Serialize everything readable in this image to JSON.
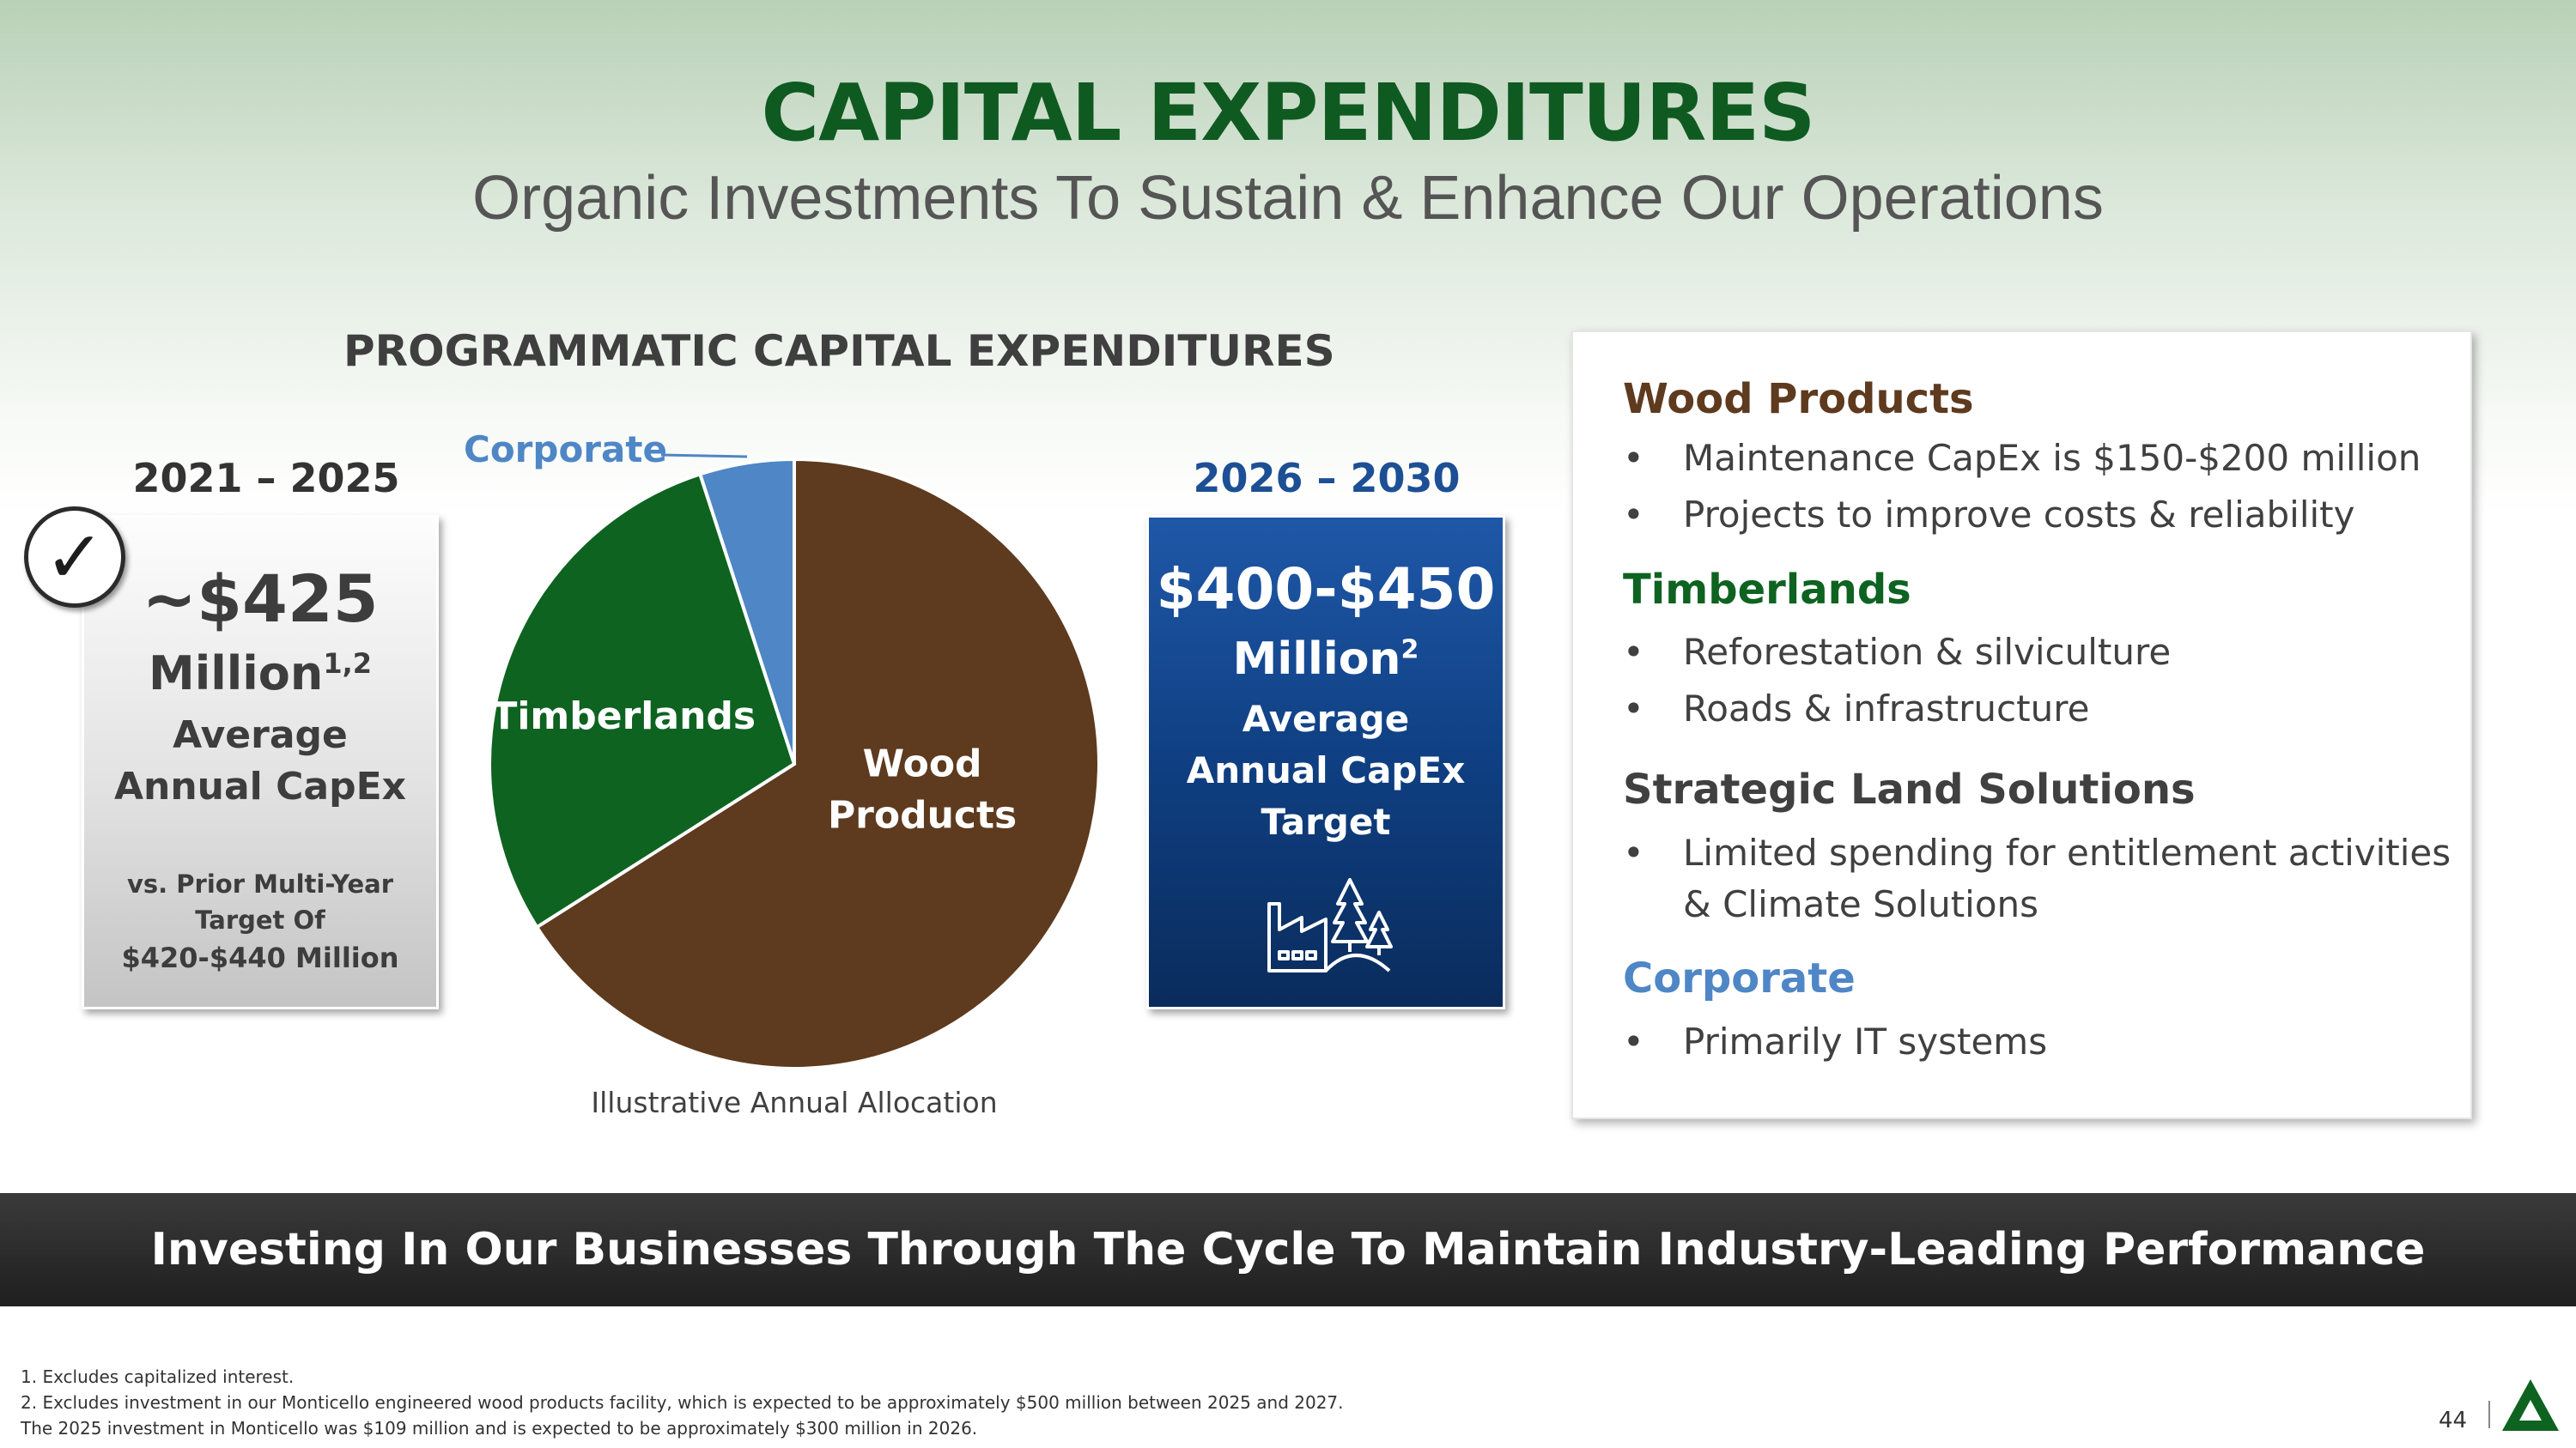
{
  "header": {
    "title": "CAPITAL EXPENDITURES",
    "subtitle": "Organic Investments To Sustain & Enhance Our Operations"
  },
  "section_heading": "PROGRAMMATIC CAPITAL EXPENDITURES",
  "left_panel": {
    "period": "2021 – 2025",
    "amount": "~$425",
    "million": "Million",
    "million_sup": "1,2",
    "average": "Average",
    "annual": "Annual CapEx",
    "vs_line": "vs. Prior Multi-Year",
    "target_line": "Target Of",
    "range_line": "$420-$440 Million",
    "check_icon": "check-circle-icon"
  },
  "right_panel": {
    "period": "2026 – 2030",
    "amount": "$400-$450",
    "million": "Million",
    "million_sup": "2",
    "average": "Average",
    "annual": "Annual CapEx",
    "target": "Target",
    "icon": "factory-trees-icon"
  },
  "chart_data": {
    "type": "pie",
    "title": "",
    "caption": "Illustrative Annual Allocation",
    "slices": [
      {
        "label": "Wood Products",
        "label_lines": [
          "Wood",
          "Products"
        ],
        "value": 66,
        "color": "#5e3a1e"
      },
      {
        "label": "Timberlands",
        "label_lines": [
          "Timberlands"
        ],
        "value": 29,
        "color": "#0e6321"
      },
      {
        "label": "Corporate",
        "label_lines": [
          "Corporate"
        ],
        "value": 5,
        "color": "#4f86c6"
      }
    ]
  },
  "info_card": {
    "segments": [
      {
        "name": "Wood Products",
        "color": "#5e3a1e",
        "bullets": [
          "Maintenance CapEx is $150-$200 million",
          "Projects to improve costs & reliability"
        ]
      },
      {
        "name": "Timberlands",
        "color": "#0e6321",
        "bullets": [
          "Reforestation & silviculture",
          "Roads & infrastructure"
        ]
      },
      {
        "name": "Strategic Land Solutions",
        "color": "#404040",
        "bullets": [
          "Limited spending for entitlement activities",
          "& Climate Solutions"
        ]
      },
      {
        "name": "Corporate",
        "color": "#4f86c6",
        "bullets": [
          "Primarily IT systems"
        ]
      }
    ]
  },
  "banner": "Investing In Our Businesses Through The Cycle To Maintain Industry-Leading Performance",
  "footnotes": [
    "1. Excludes capitalized interest.",
    "2. Excludes investment in our Monticello engineered wood products facility, which is expected to be approximately $500 million between 2025 and 2027.",
    "The 2025 investment in Monticello was $109 million and is expected to be approximately $300 million in 2026."
  ],
  "page_number": "44",
  "colors": {
    "title_green": "#0f5a21",
    "period_blue": "#1d4f94",
    "banner_bg": "#2a2a2a"
  }
}
